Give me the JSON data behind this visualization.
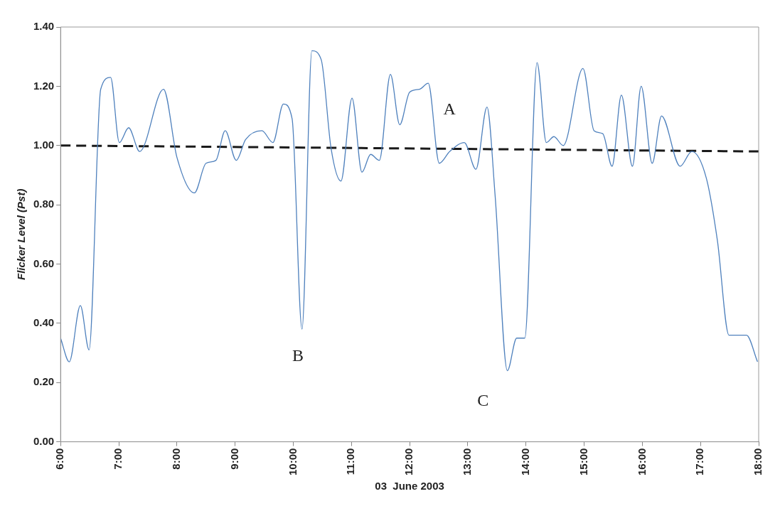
{
  "chart_data": {
    "type": "line",
    "xlabel": "03  June 2003",
    "ylabel": "Flicker Level (Pst)",
    "xlim": [
      6,
      18
    ],
    "xticks": [
      {
        "value": 6,
        "label": "6:00"
      },
      {
        "value": 7,
        "label": "7:00"
      },
      {
        "value": 8,
        "label": "8:00"
      },
      {
        "value": 9,
        "label": "9:00"
      },
      {
        "value": 10,
        "label": "10:00"
      },
      {
        "value": 11,
        "label": "11:00"
      },
      {
        "value": 12,
        "label": "12:00"
      },
      {
        "value": 13,
        "label": "13:00"
      },
      {
        "value": 14,
        "label": "14:00"
      },
      {
        "value": 15,
        "label": "15:00"
      },
      {
        "value": 16,
        "label": "16:00"
      },
      {
        "value": 17,
        "label": "17:00"
      },
      {
        "value": 18,
        "label": "18:00"
      }
    ],
    "ylim": [
      0,
      1.4
    ],
    "yticks": [
      {
        "value": 0,
        "label": "0.00"
      },
      {
        "value": 0.2,
        "label": "0.20"
      },
      {
        "value": 0.4,
        "label": "0.40"
      },
      {
        "value": 0.6,
        "label": "0.60"
      },
      {
        "value": 0.8,
        "label": "0.80"
      },
      {
        "value": 1,
        "label": "1.00"
      },
      {
        "value": 1.2,
        "label": "1.20"
      },
      {
        "value": 1.4,
        "label": "1.40"
      }
    ],
    "grid": false,
    "legend": false,
    "marker": "none",
    "series": [
      {
        "color": "#4f81bd",
        "line_style": "solid",
        "x": [
          6.0,
          6.15,
          6.34,
          6.49,
          6.69,
          6.86,
          7.01,
          7.17,
          7.36,
          7.77,
          8.0,
          8.3,
          8.5,
          8.67,
          8.83,
          9.02,
          9.18,
          9.46,
          9.65,
          9.83,
          9.98,
          10.15,
          10.32,
          10.48,
          10.65,
          10.82,
          11.01,
          11.18,
          11.33,
          11.48,
          11.67,
          11.83,
          12.0,
          12.17,
          12.32,
          12.51,
          12.69,
          12.94,
          13.14,
          13.33,
          13.47,
          13.68,
          13.84,
          13.98,
          14.19,
          14.35,
          14.48,
          14.64,
          14.98,
          15.17,
          15.32,
          15.48,
          15.64,
          15.83,
          15.98,
          16.17,
          16.33,
          16.65,
          16.85,
          17.1,
          17.29,
          17.49,
          17.79,
          17.98
        ],
        "values": [
          0.35,
          0.27,
          0.46,
          0.31,
          1.19,
          1.23,
          1.01,
          1.06,
          0.98,
          1.19,
          0.96,
          0.84,
          0.94,
          0.95,
          1.05,
          0.95,
          1.02,
          1.05,
          1.01,
          1.14,
          1.09,
          0.38,
          1.32,
          1.29,
          0.99,
          0.88,
          1.16,
          0.91,
          0.97,
          0.95,
          1.24,
          1.07,
          1.18,
          1.19,
          1.21,
          0.94,
          0.98,
          1.01,
          0.92,
          1.13,
          0.83,
          0.24,
          0.35,
          0.35,
          1.28,
          1.01,
          1.03,
          1.0,
          1.26,
          1.05,
          1.04,
          0.93,
          1.17,
          0.93,
          1.2,
          0.94,
          1.1,
          0.93,
          0.98,
          0.89,
          0.68,
          0.36,
          0.36,
          0.27
        ]
      },
      {
        "color": "#1a1a1a",
        "line_style": "dashed",
        "x": [
          6,
          18
        ],
        "values": [
          1.0,
          0.98
        ]
      }
    ],
    "annotations": [
      "A",
      "B",
      "C"
    ]
  }
}
